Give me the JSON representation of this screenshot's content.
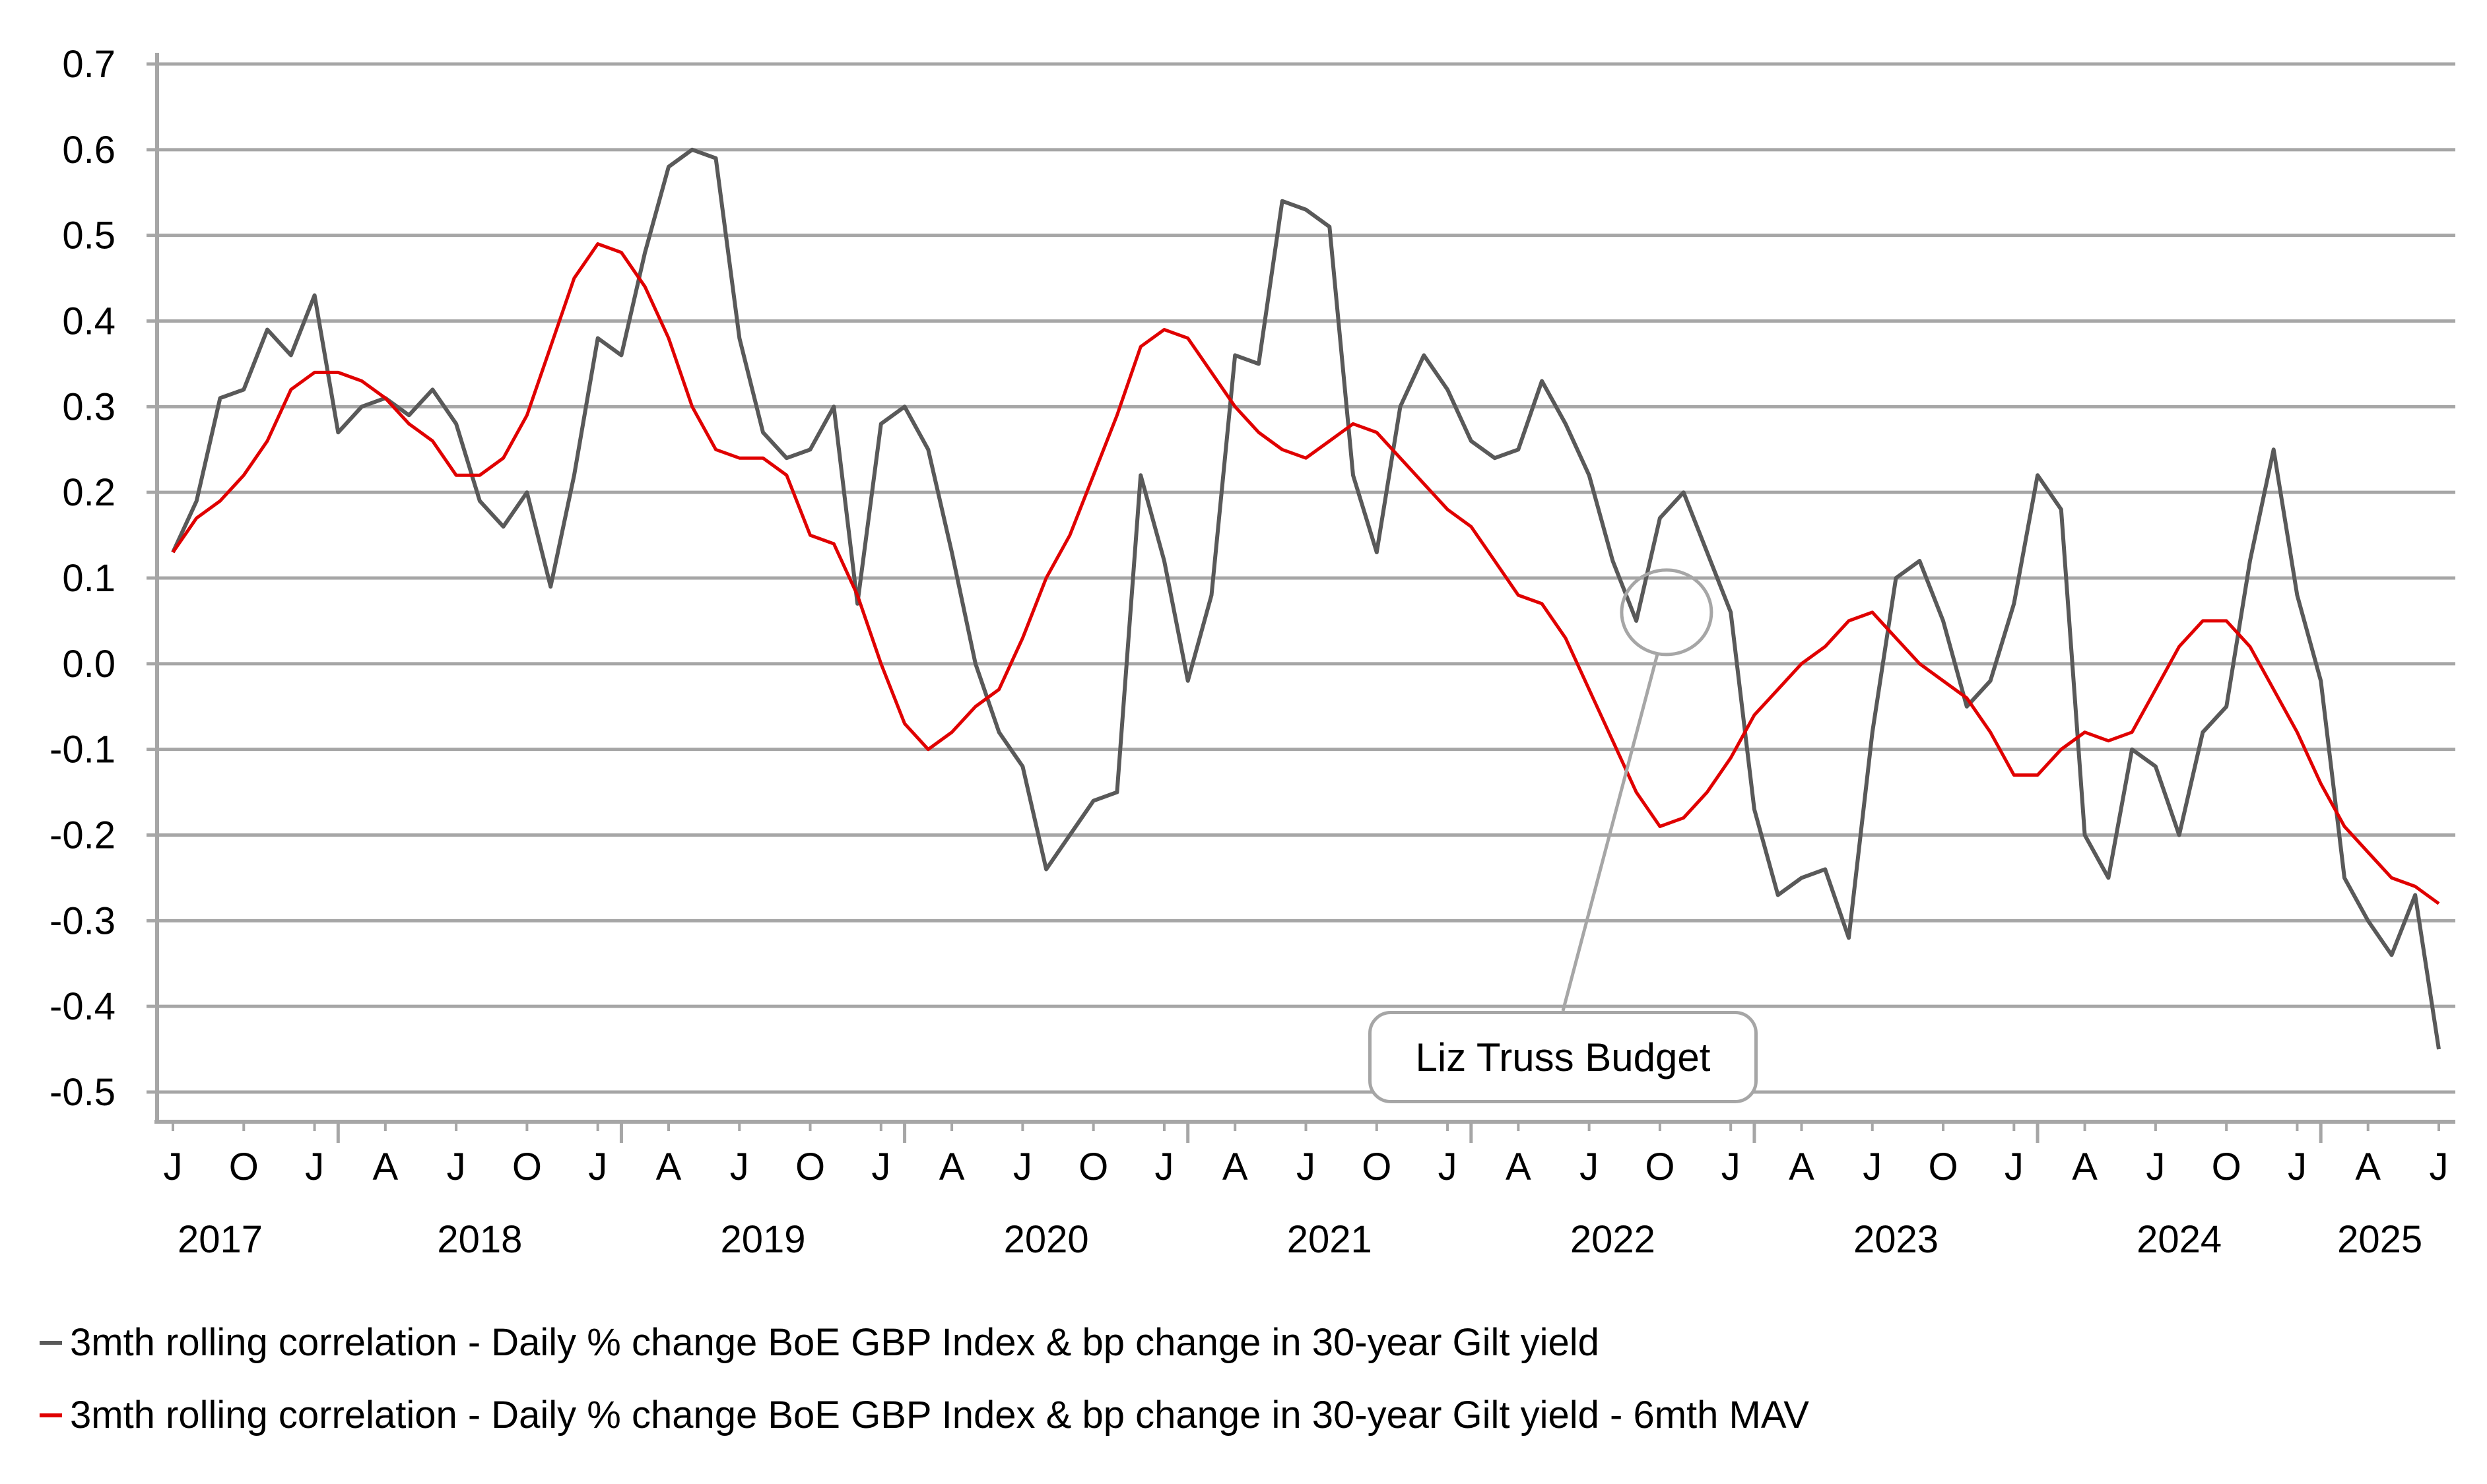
{
  "chart_data": {
    "type": "line",
    "title": "",
    "xlabel": "",
    "ylabel": "",
    "ylim": [
      -0.5,
      0.7
    ],
    "yticks": [
      "0.7",
      "0.6",
      "0.5",
      "0.4",
      "0.3",
      "0.2",
      "0.1",
      "0.0",
      "-0.1",
      "-0.2",
      "-0.3",
      "-0.4",
      "-0.5"
    ],
    "grid": true,
    "x_month_ticks": [
      "J",
      "O",
      "J",
      "A",
      "J",
      "O",
      "J",
      "A",
      "J",
      "O",
      "J",
      "A",
      "J",
      "O",
      "J",
      "A",
      "J",
      "O",
      "J",
      "A",
      "J",
      "O",
      "J",
      "A",
      "J",
      "O",
      "J",
      "A",
      "J",
      "O",
      "J",
      "A",
      "J"
    ],
    "x_year_labels": [
      "2017",
      "2018",
      "2019",
      "2020",
      "2021",
      "2022",
      "2023",
      "2024",
      "2025"
    ],
    "x_start": "2017-06",
    "x_end": "2025-06",
    "x_unit": "months since 2017-06",
    "series": [
      {
        "name": "3mth rolling correlation - Daily % change BoE GBP Index & bp change in 30-year Gilt yield",
        "color": "#595959",
        "x": [
          0,
          1,
          2,
          3,
          4,
          5,
          6,
          7,
          8,
          9,
          10,
          11,
          12,
          13,
          14,
          15,
          16,
          17,
          18,
          19,
          20,
          21,
          22,
          23,
          24,
          25,
          26,
          27,
          28,
          29,
          30,
          31,
          32,
          33,
          34,
          35,
          36,
          37,
          38,
          39,
          40,
          41,
          42,
          43,
          44,
          45,
          46,
          47,
          48,
          49,
          50,
          51,
          52,
          53,
          54,
          55,
          56,
          57,
          58,
          59,
          60,
          61,
          62,
          63,
          64,
          65,
          66,
          67,
          68,
          69,
          70,
          71,
          72,
          73,
          74,
          75,
          76,
          77,
          78,
          79,
          80,
          81,
          82,
          83,
          84,
          85,
          86,
          87,
          88,
          89,
          90,
          91,
          92,
          93,
          94,
          95,
          96
        ],
        "values": [
          0.13,
          0.19,
          0.31,
          0.32,
          0.39,
          0.36,
          0.43,
          0.27,
          0.3,
          0.31,
          0.29,
          0.32,
          0.28,
          0.19,
          0.16,
          0.2,
          0.09,
          0.22,
          0.38,
          0.36,
          0.48,
          0.58,
          0.6,
          0.59,
          0.38,
          0.27,
          0.24,
          0.25,
          0.3,
          0.07,
          0.28,
          0.3,
          0.25,
          0.13,
          0.0,
          -0.08,
          -0.12,
          -0.24,
          -0.2,
          -0.16,
          -0.15,
          0.22,
          0.12,
          -0.02,
          0.08,
          0.36,
          0.35,
          0.54,
          0.53,
          0.51,
          0.22,
          0.13,
          0.3,
          0.36,
          0.32,
          0.26,
          0.24,
          0.25,
          0.33,
          0.28,
          0.22,
          0.12,
          0.05,
          0.17,
          0.2,
          0.13,
          0.06,
          -0.17,
          -0.27,
          -0.25,
          -0.24,
          -0.32,
          -0.08,
          0.1,
          0.12,
          0.05,
          -0.05,
          -0.02,
          0.07,
          0.22,
          0.18,
          -0.2,
          -0.25,
          -0.1,
          -0.12,
          -0.2,
          -0.08,
          -0.05,
          0.12,
          0.25,
          0.08,
          -0.02,
          -0.25,
          -0.3,
          -0.34,
          -0.27,
          -0.45
        ]
      },
      {
        "name": "3mth rolling correlation - Daily % change BoE GBP Index & bp change in 30-year Gilt yield - 6mth MAV",
        "color": "#e00000",
        "x": [
          0,
          1,
          2,
          3,
          4,
          5,
          6,
          7,
          8,
          9,
          10,
          11,
          12,
          13,
          14,
          15,
          16,
          17,
          18,
          19,
          20,
          21,
          22,
          23,
          24,
          25,
          26,
          27,
          28,
          29,
          30,
          31,
          32,
          33,
          34,
          35,
          36,
          37,
          38,
          39,
          40,
          41,
          42,
          43,
          44,
          45,
          46,
          47,
          48,
          49,
          50,
          51,
          52,
          53,
          54,
          55,
          56,
          57,
          58,
          59,
          60,
          61,
          62,
          63,
          64,
          65,
          66,
          67,
          68,
          69,
          70,
          71,
          72,
          73,
          74,
          75,
          76,
          77,
          78,
          79,
          80,
          81,
          82,
          83,
          84,
          85,
          86,
          87,
          88,
          89,
          90,
          91,
          92,
          93,
          94,
          95,
          96
        ],
        "values": [
          0.13,
          0.17,
          0.19,
          0.22,
          0.26,
          0.32,
          0.34,
          0.34,
          0.33,
          0.31,
          0.28,
          0.26,
          0.22,
          0.22,
          0.24,
          0.29,
          0.37,
          0.45,
          0.49,
          0.48,
          0.44,
          0.38,
          0.3,
          0.25,
          0.24,
          0.24,
          0.22,
          0.15,
          0.14,
          0.08,
          0.0,
          -0.07,
          -0.1,
          -0.08,
          -0.05,
          -0.03,
          0.03,
          0.1,
          0.15,
          0.22,
          0.29,
          0.37,
          0.39,
          0.38,
          0.34,
          0.3,
          0.27,
          0.25,
          0.24,
          0.26,
          0.28,
          0.27,
          0.24,
          0.21,
          0.18,
          0.16,
          0.12,
          0.08,
          0.07,
          0.03,
          -0.03,
          -0.09,
          -0.15,
          -0.19,
          -0.18,
          -0.15,
          -0.11,
          -0.06,
          -0.03,
          0.0,
          0.02,
          0.05,
          0.06,
          0.03,
          0.0,
          -0.02,
          -0.04,
          -0.08,
          -0.13,
          -0.13,
          -0.1,
          -0.08,
          -0.09,
          -0.08,
          -0.03,
          0.02,
          0.05,
          0.05,
          0.02,
          -0.03,
          -0.08,
          -0.14,
          -0.19,
          -0.22,
          -0.25,
          -0.26,
          -0.28
        ]
      }
    ],
    "annotations": [
      {
        "text": "Liz Truss Budget",
        "x": 63,
        "y": 0.06
      }
    ],
    "legend_position": "bottom-left"
  },
  "legend": {
    "items": [
      {
        "label": "3mth rolling correlation - Daily % change BoE GBP Index & bp change in 30-year Gilt yield",
        "color": "#595959"
      },
      {
        "label": "3mth rolling correlation - Daily % change BoE GBP Index & bp change in 30-year Gilt yield - 6mth MAV",
        "color": "#e00000"
      }
    ]
  }
}
